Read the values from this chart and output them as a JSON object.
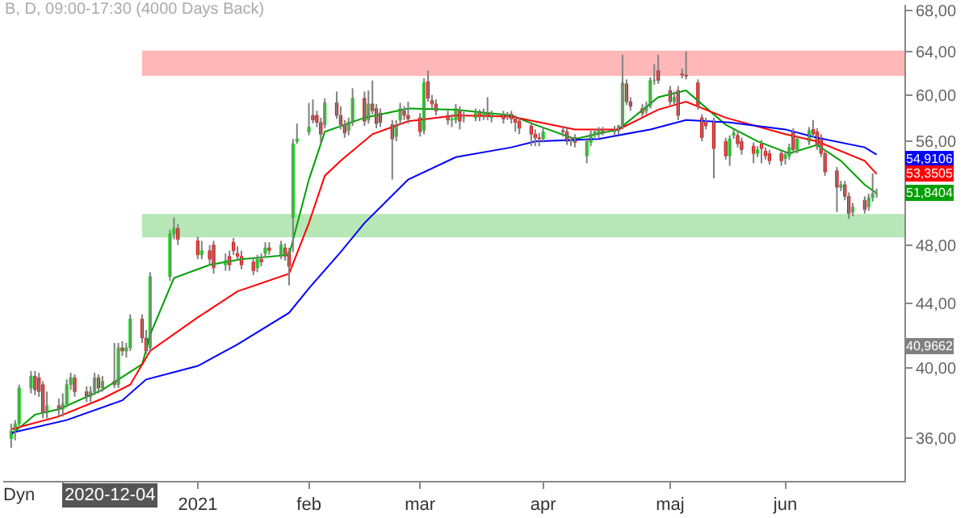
{
  "chart_data": {
    "type": "candlestick",
    "title": "B, D, 09:00-17:30 (4000 Days Back)",
    "x": [
      "2020-11-18",
      "2020-11-19",
      "2020-11-20",
      "2020-11-23",
      "2020-11-24",
      "2020-11-25",
      "2020-11-26",
      "2020-11-27",
      "2020-11-30",
      "2020-12-01",
      "2020-12-02",
      "2020-12-03",
      "2020-12-04",
      "2020-12-07",
      "2020-12-08",
      "2020-12-09",
      "2020-12-10",
      "2020-12-11",
      "2020-12-14",
      "2020-12-15",
      "2020-12-16",
      "2020-12-17",
      "2020-12-18",
      "2020-12-21",
      "2020-12-22",
      "2020-12-23",
      "2020-12-28",
      "2020-12-29",
      "2020-12-30",
      "2021-01-04",
      "2021-01-05",
      "2021-01-07",
      "2021-01-08",
      "2021-01-11",
      "2021-01-12",
      "2021-01-13",
      "2021-01-14",
      "2021-01-15",
      "2021-01-18",
      "2021-01-19",
      "2021-01-20",
      "2021-01-21",
      "2021-01-22",
      "2021-01-25",
      "2021-01-26",
      "2021-01-27",
      "2021-01-28",
      "2021-01-29",
      "2021-02-01",
      "2021-02-02",
      "2021-02-03",
      "2021-02-04",
      "2021-02-05",
      "2021-02-08",
      "2021-02-09",
      "2021-02-10",
      "2021-02-11",
      "2021-02-12",
      "2021-02-15",
      "2021-02-16",
      "2021-02-17",
      "2021-02-18",
      "2021-02-19",
      "2021-02-22",
      "2021-02-23",
      "2021-02-24",
      "2021-02-25",
      "2021-02-26",
      "2021-03-01",
      "2021-03-02",
      "2021-03-03",
      "2021-03-04",
      "2021-03-05",
      "2021-03-08",
      "2021-03-09",
      "2021-03-10",
      "2021-03-11",
      "2021-03-12",
      "2021-03-15",
      "2021-03-16",
      "2021-03-17",
      "2021-03-18",
      "2021-03-19",
      "2021-03-22",
      "2021-03-23",
      "2021-03-24",
      "2021-03-25",
      "2021-03-26",
      "2021-03-29",
      "2021-03-30",
      "2021-03-31",
      "2021-04-01",
      "2021-04-06",
      "2021-04-07",
      "2021-04-08",
      "2021-04-09",
      "2021-04-12",
      "2021-04-13",
      "2021-04-14",
      "2021-04-15",
      "2021-04-16",
      "2021-04-19",
      "2021-04-20",
      "2021-04-21",
      "2021-04-22",
      "2021-04-23",
      "2021-04-26",
      "2021-04-27",
      "2021-04-28",
      "2021-04-29",
      "2021-04-30",
      "2021-05-03",
      "2021-05-04",
      "2021-05-05",
      "2021-05-06",
      "2021-05-07",
      "2021-05-10",
      "2021-05-11",
      "2021-05-12",
      "2021-05-14",
      "2021-05-17",
      "2021-05-18",
      "2021-05-19",
      "2021-05-20",
      "2021-05-21",
      "2021-05-24",
      "2021-05-25",
      "2021-05-26",
      "2021-05-27",
      "2021-05-28",
      "2021-05-31",
      "2021-06-01",
      "2021-06-02",
      "2021-06-03",
      "2021-06-04",
      "2021-06-07",
      "2021-06-08",
      "2021-06-09",
      "2021-06-10",
      "2021-06-11",
      "2021-06-14",
      "2021-06-15",
      "2021-06-16",
      "2021-06-17",
      "2021-06-18",
      "2021-06-21",
      "2021-06-22",
      "2021-06-23",
      "2021-06-24"
    ],
    "ohlc": [
      [
        36.0,
        36.8,
        35.5,
        36.4
      ],
      [
        36.4,
        37.0,
        35.9,
        36.8
      ],
      [
        36.8,
        39.0,
        36.5,
        38.8
      ],
      [
        38.8,
        39.8,
        38.5,
        39.5
      ],
      [
        39.5,
        39.8,
        38.4,
        38.7
      ],
      [
        39.4,
        39.7,
        38.3,
        38.6
      ],
      [
        39.0,
        39.2,
        37.1,
        37.4
      ],
      [
        37.4,
        38.6,
        37.1,
        37.8
      ],
      [
        37.8,
        38.2,
        37.2,
        37.6
      ],
      [
        37.6,
        38.5,
        37.2,
        37.9
      ],
      [
        37.9,
        39.3,
        37.7,
        39.0
      ],
      [
        39.0,
        39.7,
        38.7,
        39.4
      ],
      [
        39.4,
        39.6,
        38.3,
        38.6
      ],
      [
        38.6,
        38.9,
        38.0,
        38.3
      ],
      [
        38.3,
        38.9,
        38.0,
        38.6
      ],
      [
        38.6,
        39.7,
        38.4,
        39.4
      ],
      [
        39.4,
        39.6,
        38.5,
        38.8
      ],
      [
        38.8,
        39.5,
        38.6,
        39.2
      ],
      [
        39.2,
        41.5,
        38.8,
        39.0
      ],
      [
        39.0,
        41.5,
        38.8,
        41.2
      ],
      [
        41.2,
        41.6,
        40.7,
        41.0
      ],
      [
        41.0,
        41.5,
        40.6,
        41.2
      ],
      [
        41.2,
        43.3,
        41.0,
        43.0
      ],
      [
        43.0,
        43.3,
        41.5,
        41.8
      ],
      [
        41.8,
        42.3,
        40.8,
        41.0
      ],
      [
        41.2,
        46.1,
        41.0,
        45.8
      ],
      [
        45.8,
        49.1,
        45.5,
        48.8
      ],
      [
        48.8,
        50.0,
        48.4,
        49.2
      ],
      [
        49.2,
        49.5,
        48.0,
        48.4
      ],
      [
        48.3,
        48.6,
        47.0,
        47.3
      ],
      [
        47.3,
        48.3,
        47.0,
        47.6
      ],
      [
        47.6,
        48.0,
        46.6,
        47.0
      ],
      [
        48.0,
        48.3,
        46.0,
        46.4
      ],
      [
        46.6,
        47.4,
        46.2,
        46.9
      ],
      [
        47.2,
        47.6,
        46.2,
        46.6
      ],
      [
        48.2,
        48.5,
        47.3,
        47.6
      ],
      [
        47.4,
        47.9,
        46.9,
        47.2
      ],
      [
        47.2,
        47.6,
        46.3,
        46.6
      ],
      [
        46.8,
        47.1,
        45.9,
        46.2
      ],
      [
        46.4,
        47.3,
        46.1,
        47.0
      ],
      [
        47.0,
        47.4,
        46.5,
        46.8
      ],
      [
        47.4,
        48.2,
        47.1,
        47.8
      ],
      [
        47.8,
        48.2,
        47.3,
        47.6
      ],
      [
        47.3,
        48.3,
        47.0,
        48.0
      ],
      [
        47.8,
        48.1,
        46.9,
        47.2
      ],
      [
        47.5,
        47.8,
        45.2,
        46.5
      ],
      [
        50.0,
        56.2,
        47.5,
        55.8
      ],
      [
        56.0,
        57.5,
        55.8,
        56.2
      ],
      [
        56.8,
        59.3,
        56.5,
        57.2
      ],
      [
        58.2,
        59.6,
        57.5,
        57.8
      ],
      [
        58.2,
        58.6,
        57.2,
        57.6
      ],
      [
        57.6,
        58.0,
        55.8,
        56.6
      ],
      [
        57.4,
        59.7,
        57.1,
        59.3
      ],
      [
        59.3,
        60.3,
        57.9,
        58.2
      ],
      [
        58.2,
        59.0,
        57.0,
        57.4
      ],
      [
        57.4,
        57.8,
        56.3,
        56.7
      ],
      [
        56.9,
        58.0,
        56.5,
        57.6
      ],
      [
        57.6,
        60.6,
        57.3,
        59.7
      ],
      [
        59.7,
        60.3,
        57.3,
        57.7
      ],
      [
        57.8,
        60.4,
        57.5,
        59.2
      ],
      [
        59.2,
        61.3,
        58.3,
        58.6
      ],
      [
        58.8,
        59.2,
        57.1,
        57.5
      ],
      [
        58.4,
        58.8,
        57.2,
        57.6
      ],
      [
        57.4,
        57.8,
        52.9,
        56.2
      ],
      [
        56.4,
        57.8,
        56.0,
        57.4
      ],
      [
        57.8,
        59.3,
        57.4,
        58.8
      ],
      [
        58.6,
        59.0,
        57.8,
        58.2
      ],
      [
        58.2,
        59.4,
        57.5,
        57.9
      ],
      [
        58.0,
        58.4,
        56.4,
        56.8
      ],
      [
        56.9,
        61.5,
        56.6,
        61.1
      ],
      [
        61.2,
        62.2,
        59.4,
        59.7
      ],
      [
        59.5,
        60.0,
        58.8,
        59.2
      ],
      [
        59.2,
        59.6,
        58.2,
        58.6
      ],
      [
        58.2,
        58.6,
        57.4,
        57.8
      ],
      [
        57.8,
        58.3,
        57.2,
        57.9
      ],
      [
        57.8,
        59.2,
        57.5,
        58.8
      ],
      [
        58.6,
        59.0,
        57.0,
        57.7
      ],
      [
        58.0,
        58.5,
        57.6,
        58.0
      ],
      [
        58.0,
        58.8,
        57.7,
        58.4
      ],
      [
        58.4,
        58.7,
        57.7,
        58.1
      ],
      [
        58.1,
        58.8,
        57.8,
        58.4
      ],
      [
        58.4,
        59.8,
        57.8,
        58.1
      ],
      [
        58.0,
        58.6,
        57.6,
        58.3
      ],
      [
        58.3,
        58.6,
        57.5,
        57.9
      ],
      [
        58.1,
        58.5,
        57.8,
        58.2
      ],
      [
        58.3,
        58.6,
        57.5,
        57.9
      ],
      [
        57.9,
        58.2,
        56.8,
        57.6
      ],
      [
        57.7,
        58.0,
        56.6,
        57.1
      ],
      [
        57.3,
        57.6,
        55.6,
        56.6
      ],
      [
        56.6,
        57.0,
        55.6,
        56.3
      ],
      [
        56.3,
        56.7,
        55.6,
        56.2
      ],
      [
        56.2,
        57.2,
        55.9,
        56.8
      ],
      [
        56.9,
        57.2,
        56.4,
        56.8
      ],
      [
        56.8,
        57.1,
        55.7,
        56.0
      ],
      [
        56.0,
        56.4,
        55.6,
        56.0
      ],
      [
        56.3,
        56.6,
        55.5,
        55.9
      ],
      [
        54.8,
        56.3,
        54.2,
        56.0
      ],
      [
        55.9,
        56.9,
        55.6,
        56.6
      ],
      [
        56.6,
        57.0,
        56.3,
        56.8
      ],
      [
        56.6,
        57.2,
        56.3,
        56.9
      ],
      [
        56.9,
        57.2,
        56.5,
        56.8
      ],
      [
        56.8,
        57.3,
        56.5,
        57.0
      ],
      [
        56.9,
        57.4,
        56.6,
        57.3
      ],
      [
        57.3,
        63.7,
        57.0,
        61.1
      ],
      [
        61.0,
        61.4,
        59.1,
        59.4
      ],
      [
        59.4,
        59.8,
        58.6,
        59.0
      ],
      [
        58.8,
        59.2,
        58.1,
        58.4
      ],
      [
        58.6,
        59.4,
        58.3,
        59.0
      ],
      [
        59.0,
        61.6,
        58.8,
        61.3
      ],
      [
        61.3,
        62.8,
        60.9,
        61.3
      ],
      [
        62.2,
        63.7,
        61.0,
        61.3
      ],
      [
        60.4,
        60.8,
        59.1,
        59.4
      ],
      [
        59.4,
        60.3,
        59.1,
        59.8
      ],
      [
        60.4,
        60.8,
        57.8,
        58.2
      ],
      [
        61.9,
        62.4,
        61.5,
        61.8
      ],
      [
        61.8,
        64.0,
        61.4,
        61.7
      ],
      [
        61.1,
        61.4,
        58.7,
        59.0
      ],
      [
        58.0,
        58.3,
        56.0,
        56.3
      ],
      [
        57.6,
        58.0,
        57.0,
        57.3
      ],
      [
        57.7,
        58.0,
        53.0,
        55.4
      ],
      [
        56.0,
        56.3,
        54.5,
        54.8
      ],
      [
        54.8,
        56.5,
        54.0,
        56.2
      ],
      [
        56.5,
        57.0,
        56.2,
        56.7
      ],
      [
        56.5,
        56.9,
        55.5,
        55.8
      ],
      [
        56.0,
        56.3,
        54.9,
        55.3
      ],
      [
        55.6,
        55.9,
        54.2,
        55.0
      ],
      [
        55.0,
        55.6,
        54.7,
        55.3
      ],
      [
        55.8,
        56.1,
        54.2,
        55.4
      ],
      [
        55.2,
        55.5,
        54.5,
        54.8
      ],
      [
        55.0,
        55.3,
        54.1,
        54.4
      ],
      [
        55.0,
        55.3,
        54.0,
        54.4
      ],
      [
        54.6,
        55.2,
        54.1,
        54.9
      ],
      [
        54.8,
        55.8,
        54.5,
        55.5
      ],
      [
        56.8,
        57.1,
        55.0,
        55.3
      ],
      [
        55.3,
        56.5,
        55.0,
        56.2
      ],
      [
        56.0,
        57.2,
        55.7,
        56.9
      ],
      [
        57.0,
        57.8,
        56.3,
        56.6
      ],
      [
        56.8,
        57.1,
        55.3,
        55.6
      ],
      [
        56.3,
        56.6,
        54.7,
        55.0
      ],
      [
        55.0,
        55.3,
        53.2,
        53.5
      ],
      [
        53.6,
        53.9,
        50.4,
        52.3
      ],
      [
        52.3,
        52.8,
        52.0,
        52.5
      ],
      [
        52.5,
        52.8,
        51.3,
        51.6
      ],
      [
        51.6,
        51.9,
        49.9,
        50.3
      ],
      [
        50.4,
        51.1,
        50.1,
        50.8
      ],
      [
        51.3,
        51.6,
        50.3,
        50.6
      ],
      [
        50.8,
        51.8,
        50.5,
        51.5
      ],
      [
        51.5,
        53.4,
        51.2,
        51.8
      ],
      [
        51.8,
        52.2,
        51.5,
        51.8
      ]
    ],
    "series": [
      {
        "type": "line",
        "color": "#00a000",
        "x": [
          "2020-11-18",
          "2020-11-24",
          "2020-11-30",
          "2020-12-11",
          "2020-12-21",
          "2020-12-23",
          "2020-12-29",
          "2021-01-07",
          "2021-01-15",
          "2021-01-27",
          "2021-02-01",
          "2021-02-05",
          "2021-02-15",
          "2021-02-26",
          "2021-03-10",
          "2021-03-24",
          "2021-03-30",
          "2021-04-09",
          "2021-04-20",
          "2021-04-30",
          "2021-05-07",
          "2021-05-17",
          "2021-05-25",
          "2021-06-02",
          "2021-06-09",
          "2021-06-15",
          "2021-06-21",
          "2021-06-24"
        ],
        "values": [
          36.2,
          37.3,
          37.6,
          38.7,
          40.2,
          42.0,
          45.7,
          46.6,
          47.0,
          47.3,
          52.9,
          56.8,
          58.0,
          58.8,
          58.7,
          58.2,
          57.4,
          56.2,
          57.0,
          59.8,
          60.4,
          57.4,
          56.0,
          55.0,
          55.7,
          54.4,
          52.5,
          51.84
        ]
      },
      {
        "type": "line",
        "color": "#ff0000",
        "x": [
          "2020-11-18",
          "2020-11-30",
          "2020-12-11",
          "2020-12-18",
          "2020-12-23",
          "2021-01-04",
          "2021-01-14",
          "2021-01-27",
          "2021-02-01",
          "2021-02-05",
          "2021-02-09",
          "2021-02-17",
          "2021-02-26",
          "2021-03-10",
          "2021-03-24",
          "2021-04-09",
          "2021-04-20",
          "2021-04-30",
          "2021-05-07",
          "2021-05-17",
          "2021-06-01",
          "2021-06-09",
          "2021-06-21",
          "2021-06-24"
        ],
        "values": [
          36.5,
          37.2,
          38.2,
          39.0,
          41.0,
          43.1,
          44.8,
          46.0,
          49.6,
          53.2,
          54.4,
          56.6,
          57.7,
          58.2,
          58.1,
          57.0,
          57.0,
          58.7,
          59.4,
          58.0,
          56.6,
          56.0,
          54.4,
          53.35
        ]
      },
      {
        "type": "line",
        "color": "#0000ff",
        "x": [
          "2020-11-18",
          "2020-12-02",
          "2020-12-16",
          "2020-12-22",
          "2021-01-04",
          "2021-01-14",
          "2021-01-27",
          "2021-02-01",
          "2021-02-09",
          "2021-02-15",
          "2021-02-26",
          "2021-03-10",
          "2021-03-24",
          "2021-03-30",
          "2021-04-15",
          "2021-04-28",
          "2021-05-07",
          "2021-05-18",
          "2021-06-01",
          "2021-06-09",
          "2021-06-21",
          "2021-06-24"
        ],
        "values": [
          36.3,
          37.0,
          38.1,
          39.3,
          40.1,
          41.4,
          43.4,
          45.0,
          47.5,
          49.6,
          52.9,
          54.7,
          55.5,
          56.0,
          56.2,
          57.0,
          57.8,
          57.6,
          57.0,
          56.3,
          55.5,
          54.91
        ]
      }
    ],
    "bands": [
      {
        "axis": "y",
        "from": 61.8,
        "to": 64,
        "color": "#ff9999"
      },
      {
        "axis": "y",
        "from": 48.6,
        "to": 50.2,
        "color": "#99dd99"
      }
    ],
    "annotations": [
      "54,9106",
      "53,3505",
      "51,8404",
      "40,9662",
      "Dyn",
      "2020-12-04"
    ],
    "log": true,
    "ylim": [
      33.8,
      68.6
    ],
    "yticks": [
      {
        "value": 36,
        "label": "36,00"
      },
      {
        "value": 40,
        "label": "40,00"
      },
      {
        "value": 44,
        "label": "44,00"
      },
      {
        "value": 48,
        "label": "48,00"
      },
      {
        "value": 56,
        "label": "56,00"
      },
      {
        "value": 60,
        "label": "60,00"
      },
      {
        "value": 64,
        "label": "64,00"
      },
      {
        "value": 68,
        "label": "68,00"
      }
    ],
    "xlim": [
      "2020-11-16",
      "2021-07-01"
    ],
    "xticks": [
      {
        "value": "2020-12-01",
        "label": null
      },
      {
        "value": "2021-01-04",
        "label": "2021"
      },
      {
        "value": "2021-02-01",
        "label": "feb"
      },
      {
        "value": "2021-03-01",
        "label": "mar"
      },
      {
        "value": "2021-04-01",
        "label": "apr"
      },
      {
        "value": "2021-05-03",
        "label": "maj"
      },
      {
        "value": "2021-06-01",
        "label": "jun"
      }
    ]
  }
}
